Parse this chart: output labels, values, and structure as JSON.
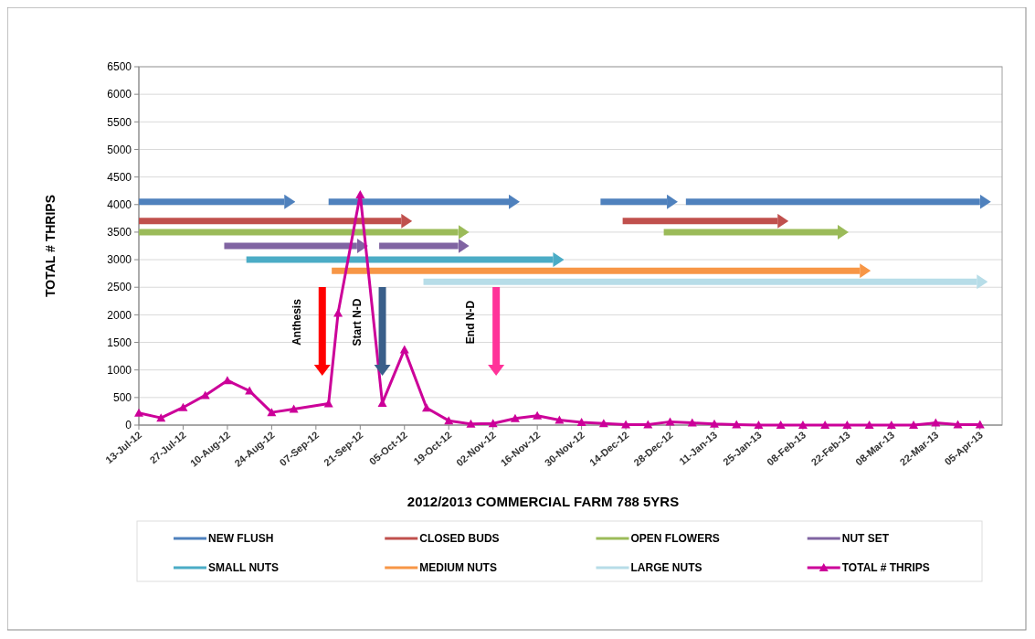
{
  "chart_data": {
    "type": "line",
    "title": "2012/2013 COMMERCIAL FARM 788 5YRS",
    "ylabel": "TOTAL # THRIPS",
    "xlim": [
      "2012-07-13",
      "2013-04-12"
    ],
    "ylim": [
      0,
      6500
    ],
    "yticks": [
      0,
      500,
      1000,
      1500,
      2000,
      2500,
      3000,
      3500,
      4000,
      4500,
      5000,
      5500,
      6000,
      6500
    ],
    "xticks": [
      {
        "value": "2012-07-13",
        "label": "13-Jul-12"
      },
      {
        "value": "2012-07-27",
        "label": "27-Jul-12"
      },
      {
        "value": "2012-08-10",
        "label": "10-Aug-12"
      },
      {
        "value": "2012-08-24",
        "label": "24-Aug-12"
      },
      {
        "value": "2012-09-07",
        "label": "07-Sep-12"
      },
      {
        "value": "2012-09-21",
        "label": "21-Sep-12"
      },
      {
        "value": "2012-10-05",
        "label": "05-Oct-12"
      },
      {
        "value": "2012-10-19",
        "label": "19-Oct-12"
      },
      {
        "value": "2012-11-02",
        "label": "02-Nov-12"
      },
      {
        "value": "2012-11-16",
        "label": "16-Nov-12"
      },
      {
        "value": "2012-11-30",
        "label": "30-Nov-12"
      },
      {
        "value": "2012-12-14",
        "label": "14-Dec-12"
      },
      {
        "value": "2012-12-28",
        "label": "28-Dec-12"
      },
      {
        "value": "2013-01-11",
        "label": "11-Jan-13"
      },
      {
        "value": "2013-01-25",
        "label": "25-Jan-13"
      },
      {
        "value": "2013-02-08",
        "label": "08-Feb-13"
      },
      {
        "value": "2013-02-22",
        "label": "22-Feb-13"
      },
      {
        "value": "2013-03-08",
        "label": "08-Mar-13"
      },
      {
        "value": "2013-03-22",
        "label": "22-Mar-13"
      },
      {
        "value": "2013-04-05",
        "label": "05-Apr-13"
      }
    ],
    "grid": "y",
    "legend": "bottom",
    "series": [
      {
        "name": "NEW FLUSH",
        "color": "#4f81bd",
        "x": [
          "2012-07-13",
          "2012-08-28"
        ],
        "values": [
          4050,
          4050
        ]
      },
      {
        "color": "#4f81bd",
        "x": [
          "2012-09-11",
          "2012-11-07"
        ],
        "values": [
          4050,
          4050
        ]
      },
      {
        "color": "#4f81bd",
        "x": [
          "2012-12-06",
          "2012-12-27"
        ],
        "values": [
          4050,
          4050
        ]
      },
      {
        "color": "#4f81bd",
        "x": [
          "2013-01-02",
          "2013-04-05"
        ],
        "values": [
          4050,
          4050
        ]
      },
      {
        "name": "CLOSED BUDS",
        "color": "#c0504d",
        "x": [
          "2012-07-13",
          "2012-10-04"
        ],
        "values": [
          3700,
          3700
        ]
      },
      {
        "color": "#c0504d",
        "x": [
          "2012-12-13",
          "2013-01-31"
        ],
        "values": [
          3700,
          3700
        ]
      },
      {
        "name": "OPEN FLOWERS",
        "color": "#9bbb59",
        "x": [
          "2012-07-13",
          "2012-10-22"
        ],
        "values": [
          3500,
          3500
        ]
      },
      {
        "color": "#9bbb59",
        "x": [
          "2012-12-26",
          "2013-02-19"
        ],
        "values": [
          3500,
          3500
        ]
      },
      {
        "name": "NUT SET",
        "color": "#8064a2",
        "x": [
          "2012-08-09",
          "2012-09-20"
        ],
        "values": [
          3250,
          3250
        ]
      },
      {
        "color": "#8064a2",
        "x": [
          "2012-09-27",
          "2012-10-22"
        ],
        "values": [
          3250,
          3250
        ]
      },
      {
        "name": "SMALL NUTS",
        "color": "#4bacc6",
        "x": [
          "2012-08-16",
          "2012-11-21"
        ],
        "values": [
          3000,
          3000
        ]
      },
      {
        "name": "MEDIUM NUTS",
        "color": "#f79646",
        "x": [
          "2012-09-12",
          "2013-02-26"
        ],
        "values": [
          2800,
          2800
        ]
      },
      {
        "name": "LARGE NUTS",
        "color": "#b7dde8",
        "x": [
          "2012-10-11",
          "2013-04-04"
        ],
        "values": [
          2600,
          2600
        ]
      },
      {
        "name": "TOTAL # THRIPS",
        "color": "#cc0099",
        "marker": "triangle",
        "x": [
          "2012-07-13",
          "2012-07-20",
          "2012-07-27",
          "2012-08-03",
          "2012-08-10",
          "2012-08-17",
          "2012-08-24",
          "2012-08-31",
          "2012-09-11",
          "2012-09-14",
          "2012-09-21",
          "2012-09-28",
          "2012-10-05",
          "2012-10-12",
          "2012-10-19",
          "2012-10-26",
          "2012-11-02",
          "2012-11-09",
          "2012-11-16",
          "2012-11-23",
          "2012-11-30",
          "2012-12-07",
          "2012-12-14",
          "2012-12-21",
          "2012-12-28",
          "2013-01-04",
          "2013-01-11",
          "2013-01-18",
          "2013-01-25",
          "2013-02-01",
          "2013-02-08",
          "2013-02-15",
          "2013-02-22",
          "2013-03-01",
          "2013-03-08",
          "2013-03-15",
          "2013-03-22",
          "2013-03-29",
          "2013-04-05"
        ],
        "values": [
          220,
          130,
          320,
          540,
          810,
          620,
          230,
          290,
          390,
          2030,
          4180,
          400,
          1370,
          310,
          80,
          20,
          30,
          120,
          170,
          90,
          50,
          30,
          10,
          10,
          60,
          40,
          20,
          10,
          0,
          0,
          0,
          0,
          0,
          0,
          0,
          0,
          40,
          10,
          10
        ]
      }
    ],
    "ref_lines": [
      {
        "axis": "x",
        "value": "2012-09-09",
        "label": "Anthesis",
        "color": "#ff0000"
      },
      {
        "axis": "x",
        "value": "2012-09-28",
        "label": "Start N-D",
        "color": "#3a5f8a"
      },
      {
        "axis": "x",
        "value": "2012-11-03",
        "label": "End N-D",
        "color": "#ff3399"
      }
    ]
  }
}
